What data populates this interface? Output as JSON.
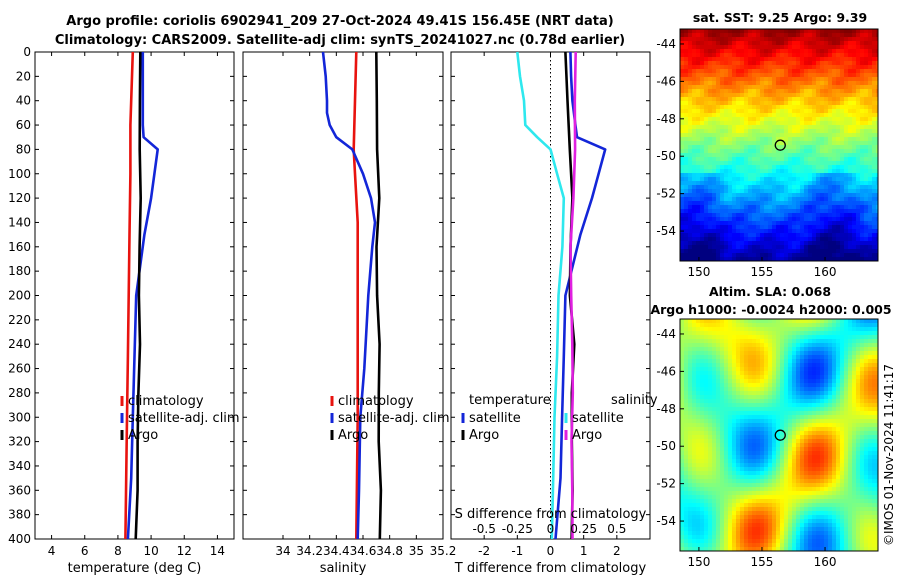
{
  "header": {
    "title_line1": "Argo profile: coriolis 6902941_209 27-Oct-2024 49.41S 156.45E (NRT data)",
    "title_line2": "Climatology: CARS2009. Satellite-adj clim: synTS_20241027.nc (0.78d earlier)"
  },
  "maps": {
    "sst_title": "sat. SST: 9.25 Argo: 9.39",
    "sla_title_line1": "Altim. SLA: 0.068",
    "sla_title_line2": "Argo h1000: -0.0024 h2000: 0.005",
    "lat_ticks": [
      "-44",
      "-46",
      "-48",
      "-50",
      "-52",
      "-54"
    ],
    "lon_ticks": [
      "150",
      "155",
      "160"
    ],
    "float_position": {
      "lon": 156.45,
      "lat": -49.41
    }
  },
  "timestamp": "©IMOS 01-Nov-2024 11:41:17",
  "colors": {
    "climatology": "#e8130f",
    "satellite": "#1326d8",
    "argo": "#000000",
    "cyan": "#2ee8ee",
    "magenta": "#e020e0"
  },
  "chart_data": [
    {
      "type": "line",
      "name": "temperature",
      "xlabel": "temperature (deg C)",
      "ylabel": "",
      "xlim": [
        3,
        15
      ],
      "ylim": [
        0,
        400
      ],
      "y_inverted": true,
      "xticks": [
        4,
        6,
        8,
        10,
        12,
        14
      ],
      "yticks": [
        0,
        20,
        40,
        60,
        80,
        100,
        120,
        140,
        160,
        180,
        200,
        220,
        240,
        260,
        280,
        300,
        320,
        340,
        360,
        380,
        400
      ],
      "legend": [
        "climatology",
        "satellite-adj. clim",
        "Argo"
      ],
      "series": [
        {
          "name": "climatology",
          "color": "#e8130f",
          "depth": [
            0,
            20,
            40,
            60,
            80,
            100,
            150,
            200,
            250,
            300,
            350,
            400
          ],
          "values": [
            8.9,
            8.85,
            8.8,
            8.75,
            8.75,
            8.75,
            8.7,
            8.65,
            8.6,
            8.55,
            8.5,
            8.45
          ]
        },
        {
          "name": "satellite-adj. clim",
          "color": "#1326d8",
          "depth": [
            0,
            20,
            40,
            60,
            70,
            80,
            100,
            120,
            150,
            200,
            250,
            300,
            350,
            400
          ],
          "values": [
            9.5,
            9.5,
            9.5,
            9.5,
            9.55,
            10.4,
            10.2,
            10.0,
            9.6,
            9.1,
            9.0,
            8.9,
            8.8,
            8.6
          ]
        },
        {
          "name": "Argo",
          "color": "#000000",
          "depth": [
            0,
            40,
            80,
            120,
            160,
            200,
            240,
            280,
            320,
            360,
            400
          ],
          "values": [
            9.35,
            9.3,
            9.35,
            9.35,
            9.3,
            9.3,
            9.3,
            9.25,
            9.2,
            9.15,
            9.1
          ]
        }
      ]
    },
    {
      "type": "line",
      "name": "salinity",
      "xlabel": "salinity",
      "xlim": [
        33.7,
        35.2
      ],
      "ylim": [
        0,
        400
      ],
      "y_inverted": true,
      "xticks": [
        34,
        34.2,
        34.4,
        34.6,
        34.8,
        35
      ],
      "xtick_labels": [
        "34",
        "34.2",
        "34.4",
        "34.6",
        "34.8",
        "35"
      ],
      "x_end_label": "35.2",
      "legend": [
        "climatology",
        "satellite-adj. clim",
        "Argo"
      ],
      "series": [
        {
          "name": "climatology",
          "color": "#e8130f",
          "depth": [
            0,
            40,
            80,
            100,
            140,
            200,
            300,
            400
          ],
          "values": [
            34.55,
            34.54,
            34.53,
            34.54,
            34.56,
            34.56,
            34.56,
            34.55
          ]
        },
        {
          "name": "satellite-adj. clim",
          "color": "#1326d8",
          "depth": [
            0,
            20,
            40,
            50,
            60,
            70,
            80,
            100,
            120,
            140,
            160,
            200,
            260,
            300,
            360,
            400
          ],
          "values": [
            34.3,
            34.32,
            34.33,
            34.33,
            34.35,
            34.4,
            34.52,
            34.6,
            34.66,
            34.69,
            34.67,
            34.64,
            34.61,
            34.58,
            34.57,
            34.56
          ]
        },
        {
          "name": "Argo",
          "color": "#000000",
          "depth": [
            0,
            40,
            80,
            120,
            160,
            200,
            240,
            280,
            320,
            360,
            400
          ],
          "values": [
            34.7,
            34.7,
            34.71,
            34.72,
            34.7,
            34.71,
            34.72,
            34.72,
            34.72,
            34.73,
            34.73
          ]
        }
      ]
    },
    {
      "type": "line",
      "name": "difference",
      "xlabel": "T difference from climatology",
      "top_xlabel": "S difference from climatology",
      "xlim": [
        -3,
        3
      ],
      "ylim": [
        0,
        400
      ],
      "y_inverted": true,
      "xticks": [
        -2,
        -1,
        0,
        1,
        2
      ],
      "top_xticks": [
        -0.5,
        -0.25,
        0,
        0.25,
        0.5
      ],
      "top_xtick_labels": [
        "-0.5",
        "-0.25",
        "0",
        "0.25",
        "0.5"
      ],
      "legend_temperature_header": "temperature",
      "legend_salinity_header": "salinity",
      "legend_temperature": [
        "satellite",
        "Argo"
      ],
      "legend_salinity": [
        "satellite",
        "Argo"
      ],
      "series": [
        {
          "name": "T satellite",
          "color": "#1326d8",
          "depth": [
            0,
            20,
            40,
            60,
            70,
            80,
            100,
            120,
            150,
            200,
            250,
            300,
            350,
            400
          ],
          "values": [
            0.6,
            0.62,
            0.66,
            0.75,
            0.8,
            1.65,
            1.45,
            1.25,
            0.9,
            0.45,
            0.4,
            0.35,
            0.3,
            0.15
          ]
        },
        {
          "name": "T Argo",
          "color": "#000000",
          "depth": [
            0,
            40,
            80,
            120,
            160,
            200,
            240,
            280,
            320,
            360,
            400
          ],
          "values": [
            0.45,
            0.5,
            0.6,
            0.65,
            0.6,
            0.6,
            0.7,
            0.65,
            0.65,
            0.65,
            0.65
          ]
        },
        {
          "name": "S satellite",
          "color": "#2ee8ee",
          "depth": [
            0,
            20,
            40,
            60,
            70,
            80,
            100,
            120,
            160,
            200,
            250,
            300,
            350,
            400
          ],
          "values": [
            -0.25,
            -0.23,
            -0.2,
            -0.19,
            -0.1,
            0.0,
            0.05,
            0.1,
            0.09,
            0.06,
            0.05,
            0.03,
            0.02,
            0.01
          ]
        },
        {
          "name": "S Argo",
          "color": "#e020e0",
          "depth": [
            0,
            40,
            80,
            120,
            160,
            200,
            240,
            280,
            320,
            360,
            400
          ],
          "values": [
            0.19,
            0.18,
            0.19,
            0.17,
            0.15,
            0.16,
            0.16,
            0.17,
            0.16,
            0.16,
            0.17
          ]
        }
      ]
    }
  ]
}
